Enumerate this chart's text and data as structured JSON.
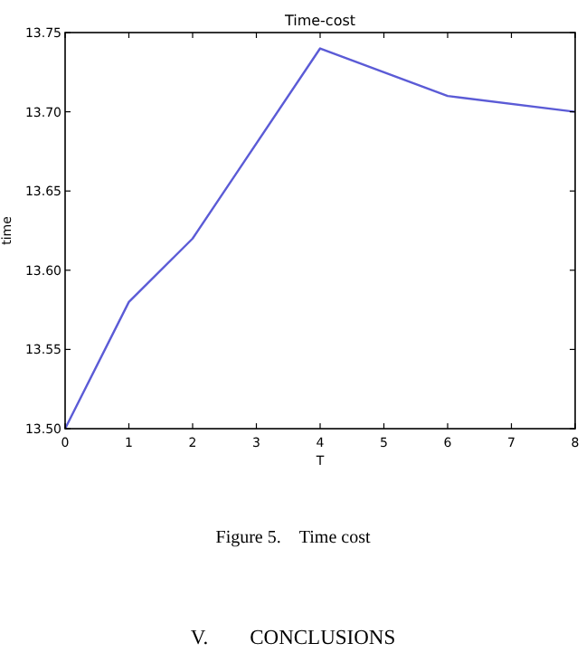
{
  "chart_data": {
    "type": "line",
    "title": "Time-cost",
    "xlabel": "T",
    "ylabel": "time",
    "x": [
      0,
      1,
      2,
      4,
      6,
      8
    ],
    "series": [
      {
        "color": "#5b5bd6",
        "values": [
          13.5,
          13.58,
          13.62,
          13.74,
          13.71,
          13.7
        ]
      }
    ],
    "xlim": [
      0,
      8
    ],
    "xticks": [
      0,
      1,
      2,
      3,
      4,
      5,
      6,
      7,
      8
    ],
    "ylim": [
      13.5,
      13.75
    ],
    "yticks": [
      {
        "value": 13.5,
        "label": "13.50"
      },
      {
        "value": 13.55,
        "label": "13.55"
      },
      {
        "value": 13.6,
        "label": "13.60"
      },
      {
        "value": 13.65,
        "label": "13.65"
      },
      {
        "value": 13.7,
        "label": "13.70"
      },
      {
        "value": 13.75,
        "label": "13.75"
      }
    ],
    "grid": false,
    "marker": "none",
    "line_style": "solid",
    "annotations": [
      "Figure 5. Time cost",
      "V.  CONCLUSIONS"
    ]
  }
}
